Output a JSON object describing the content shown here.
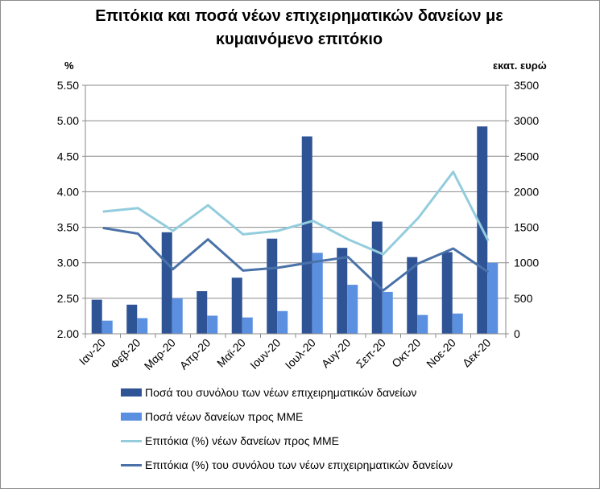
{
  "chart_data": {
    "type": "bar",
    "title_line1": "Επιτόκια και ποσά νέων επιχειρηματικών δανείων με",
    "title_line2": "κυμαινόμενο επιτόκιο",
    "y_left_label": "%",
    "y_right_label": "εκατ. ευρώ",
    "y_left_lim": [
      2.0,
      5.5
    ],
    "y_left_ticks": [
      "2.00",
      "2.50",
      "3.00",
      "3.50",
      "4.00",
      "4.50",
      "5.00",
      "5.50"
    ],
    "y_right_lim": [
      0,
      3500
    ],
    "y_right_ticks": [
      "0",
      "500",
      "1000",
      "1500",
      "2000",
      "2500",
      "3000",
      "3500"
    ],
    "grid": true,
    "legend_position": "bottom",
    "categories": [
      "Ιαν-20",
      "Φεβ-20",
      "Μαρ-20",
      "Απρ-20",
      "Μαϊ-20",
      "Ιουν-20",
      "Ιουλ-20",
      "Αυγ-20",
      "Σεπ-20",
      "Οκτ-20",
      "Νοε-20",
      "Δεκ-20"
    ],
    "series": [
      {
        "name": "Ποσά του συνόλου των νέων επιχειρηματικών δανείων",
        "kind": "bar",
        "axis": "right",
        "color": "#2f5496",
        "values": [
          480,
          410,
          1430,
          600,
          790,
          1340,
          2780,
          1210,
          1580,
          1080,
          1150,
          2920
        ]
      },
      {
        "name": "Ποσά νέων δανείων προς ΜΜΕ",
        "kind": "bar",
        "axis": "right",
        "color": "#5b8fdf",
        "values": [
          185,
          220,
          500,
          255,
          230,
          320,
          1140,
          690,
          590,
          265,
          285,
          1000
        ]
      },
      {
        "name": "Επιτόκια (%) νέων δανείων προς ΜΜΕ",
        "kind": "line",
        "axis": "left",
        "color": "#93cddd",
        "values": [
          3.72,
          3.77,
          3.45,
          3.81,
          3.4,
          3.45,
          3.59,
          3.33,
          3.12,
          3.63,
          4.28,
          3.31
        ]
      },
      {
        "name": "Επιτόκια (%) του συνόλου των νέων επιχειρηματικών δανείων",
        "kind": "line",
        "axis": "left",
        "color": "#4a72a8",
        "values": [
          3.49,
          3.41,
          2.91,
          3.33,
          2.89,
          2.93,
          3.01,
          3.08,
          2.61,
          2.99,
          3.2,
          2.87
        ]
      }
    ]
  }
}
